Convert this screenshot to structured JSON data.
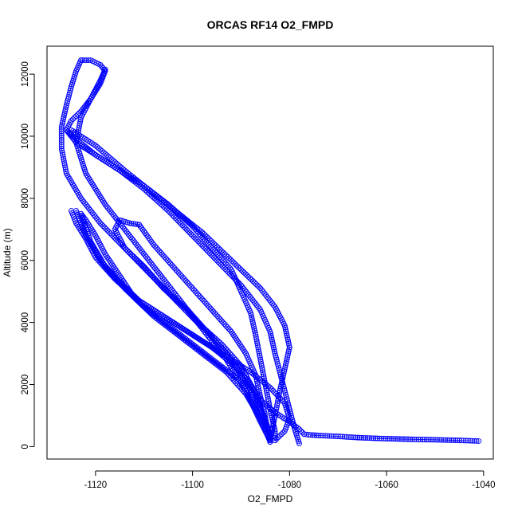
{
  "chart_data": {
    "type": "scatter",
    "title": "ORCAS RF14 O2_FMPD",
    "xlabel": "O2_FMPD",
    "ylabel": "Altitude (m)",
    "xlim": [
      -1130,
      -1038
    ],
    "ylim": [
      -400,
      12900
    ],
    "x_ticks": [
      -1120,
      -1100,
      -1080,
      -1060,
      -1040
    ],
    "x_tick_labels": [
      "-1120",
      "-1100",
      "-1080",
      "-1060",
      "-1040"
    ],
    "y_ticks": [
      0,
      2000,
      4000,
      6000,
      8000,
      10000,
      12000
    ],
    "y_tick_labels": [
      "0",
      "2000",
      "4000",
      "6000",
      "8000",
      "10000",
      "12000"
    ],
    "grid": false,
    "marker": "open-circle",
    "color": "#0000ff",
    "series": [
      {
        "x": [
          -1041,
          -1045,
          -1050,
          -1056,
          -1061,
          -1066,
          -1070,
          -1074,
          -1076,
          -1077
        ],
        "y": [
          180,
          200,
          220,
          240,
          260,
          290,
          330,
          360,
          380,
          400
        ]
      },
      {
        "x": [
          -1077,
          -1078,
          -1080,
          -1083,
          -1086,
          -1088,
          -1090,
          -1094,
          -1099,
          -1104,
          -1109,
          -1114,
          -1119,
          -1123,
          -1126,
          -1127,
          -1127,
          -1126,
          -1125,
          -1124,
          -1123
        ],
        "y": [
          400,
          560,
          800,
          1100,
          1500,
          2000,
          2600,
          3300,
          4000,
          4800,
          5600,
          6400,
          7200,
          8000,
          8800,
          9600,
          10300,
          11000,
          11600,
          12100,
          12450
        ]
      },
      {
        "x": [
          -1123,
          -1121,
          -1119,
          -1118,
          -1119,
          -1121,
          -1123,
          -1125,
          -1126,
          -1124,
          -1120,
          -1115,
          -1110,
          -1105,
          -1100,
          -1096,
          -1092,
          -1090,
          -1088,
          -1087,
          -1086,
          -1085,
          -1084,
          -1083,
          -1083
        ],
        "y": [
          12450,
          12450,
          12300,
          12100,
          11700,
          11200,
          10800,
          10500,
          10200,
          9800,
          9400,
          8900,
          8400,
          7800,
          7100,
          6400,
          5700,
          5000,
          4300,
          3600,
          2800,
          2000,
          1200,
          500,
          200
        ]
      },
      {
        "x": [
          -1084,
          -1086,
          -1089,
          -1093,
          -1098,
          -1103,
          -1108,
          -1113,
          -1118,
          -1122,
          -1124,
          -1123,
          -1121,
          -1119,
          -1118
        ],
        "y": [
          200,
          800,
          1800,
          2800,
          3800,
          4800,
          5800,
          6800,
          7800,
          8800,
          9800,
          10600,
          11200,
          11800,
          12150
        ]
      },
      {
        "x": [
          -1083,
          -1081,
          -1080,
          -1081,
          -1084,
          -1088,
          -1093,
          -1099,
          -1105,
          -1111,
          -1116,
          -1120,
          -1122,
          -1124,
          -1125
        ],
        "y": [
          200,
          500,
          900,
          1400,
          1900,
          2400,
          2900,
          3500,
          4100,
          4700,
          5400,
          6100,
          6700,
          7200,
          7600
        ]
      },
      {
        "x": [
          -1124,
          -1122,
          -1119,
          -1115,
          -1111,
          -1106,
          -1101,
          -1096,
          -1092,
          -1089,
          -1087,
          -1086,
          -1085,
          -1084,
          -1084
        ],
        "y": [
          7600,
          6800,
          6000,
          5300,
          4700,
          4200,
          3700,
          3200,
          2700,
          2200,
          1700,
          1200,
          800,
          400,
          150
        ]
      },
      {
        "x": [
          -1084,
          -1086,
          -1089,
          -1093,
          -1098,
          -1103,
          -1108,
          -1112,
          -1115,
          -1118,
          -1120,
          -1122,
          -1123
        ],
        "y": [
          150,
          900,
          1700,
          2400,
          3000,
          3600,
          4200,
          4800,
          5500,
          6200,
          6800,
          7300,
          7500
        ]
      },
      {
        "x": [
          -1123,
          -1121,
          -1118,
          -1114,
          -1110,
          -1105,
          -1100,
          -1095,
          -1090,
          -1087,
          -1085,
          -1084
        ],
        "y": [
          7500,
          6600,
          5800,
          5100,
          4500,
          3900,
          3300,
          2700,
          2100,
          1500,
          900,
          300
        ]
      },
      {
        "x": [
          -1084,
          -1085,
          -1087,
          -1090,
          -1093,
          -1097,
          -1101,
          -1106,
          -1110,
          -1114,
          -1116,
          -1115,
          -1113,
          -1111
        ],
        "y": [
          300,
          900,
          1600,
          2300,
          3000,
          3700,
          4400,
          5100,
          5800,
          6400,
          7000,
          7300,
          7200,
          7150
        ]
      },
      {
        "x": [
          -1111,
          -1108,
          -1104,
          -1100,
          -1096,
          -1092,
          -1089,
          -1087,
          -1086,
          -1085,
          -1085,
          -1084
        ],
        "y": [
          7150,
          6500,
          5800,
          5100,
          4400,
          3700,
          3000,
          2300,
          1600,
          1000,
          500,
          200
        ]
      },
      {
        "x": [
          -1084,
          -1083,
          -1082,
          -1081,
          -1080,
          -1081,
          -1083,
          -1086,
          -1090,
          -1094,
          -1098,
          -1102,
          -1106,
          -1110,
          -1114,
          -1117,
          -1120,
          -1123,
          -1125
        ],
        "y": [
          200,
          1000,
          1800,
          2500,
          3200,
          3900,
          4500,
          5100,
          5700,
          6300,
          6900,
          7400,
          7900,
          8400,
          8900,
          9300,
          9700,
          10000,
          10200
        ]
      },
      {
        "x": [
          -1078,
          -1079,
          -1080,
          -1081,
          -1082,
          -1083,
          -1084,
          -1086,
          -1090,
          -1095,
          -1100,
          -1105,
          -1110,
          -1115,
          -1120,
          -1124,
          -1126
        ],
        "y": [
          100,
          600,
          1200,
          1800,
          2400,
          3000,
          3700,
          4400,
          5200,
          6000,
          6800,
          7600,
          8300,
          8900,
          9400,
          9900,
          10200
        ]
      }
    ]
  }
}
